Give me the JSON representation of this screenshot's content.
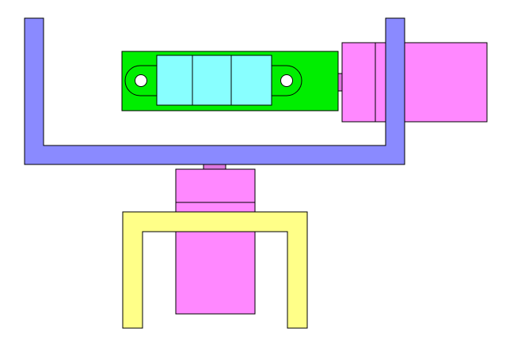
{
  "colors": {
    "background": "#ffffff",
    "outline": "#000000",
    "bracket_blue": "#8a8aff",
    "bracket_yellow": "#ffff88",
    "servo_magenta": "#ff88ff",
    "servo_horn": "#dd77dd",
    "sensor_board_green": "#00ee00",
    "sensor_body_cyan": "#88ffff",
    "mount_hole_white": "#ffffff"
  },
  "parts": [
    {
      "name": "upper-u-bracket",
      "color": "bracket_blue"
    },
    {
      "name": "pan-servo",
      "color": "servo_magenta"
    },
    {
      "name": "pan-servo-horn",
      "color": "servo_horn"
    },
    {
      "name": "tilt-servo",
      "color": "servo_magenta"
    },
    {
      "name": "sensor-board",
      "color": "sensor_board_green"
    },
    {
      "name": "sensor-body",
      "color": "sensor_body_cyan"
    },
    {
      "name": "lower-u-bracket",
      "color": "bracket_yellow"
    }
  ]
}
